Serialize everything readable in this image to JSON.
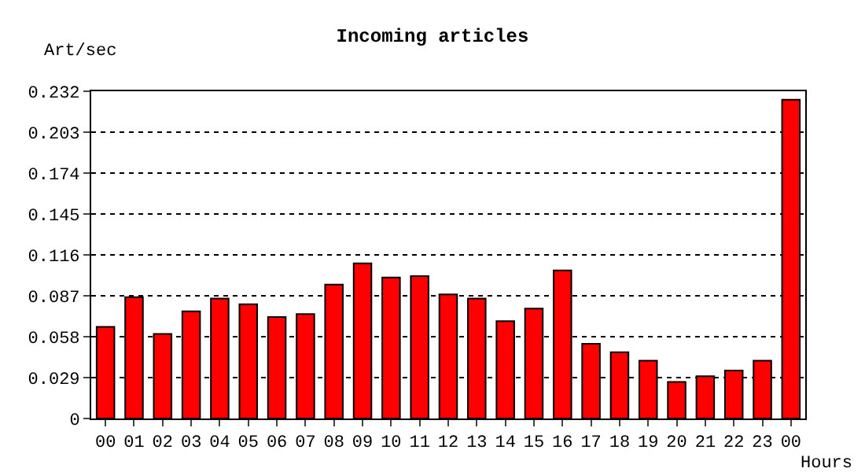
{
  "chart_data": {
    "type": "bar",
    "title": "Incoming articles",
    "ylabel": "Art/sec",
    "xlabel": "Hours",
    "categories": [
      "00",
      "01",
      "02",
      "03",
      "04",
      "05",
      "06",
      "07",
      "08",
      "09",
      "10",
      "11",
      "12",
      "13",
      "14",
      "15",
      "16",
      "17",
      "18",
      "19",
      "20",
      "21",
      "22",
      "23",
      "00"
    ],
    "values": [
      0.065,
      0.086,
      0.06,
      0.076,
      0.085,
      0.081,
      0.072,
      0.074,
      0.095,
      0.11,
      0.1,
      0.101,
      0.088,
      0.085,
      0.069,
      0.078,
      0.105,
      0.053,
      0.047,
      0.041,
      0.026,
      0.03,
      0.034,
      0.041,
      0.226
    ],
    "color": "#ff0000",
    "ylim": [
      0,
      0.232
    ],
    "yticks": [
      0,
      0.029,
      0.058,
      0.087,
      0.116,
      0.145,
      0.174,
      0.203,
      0.232
    ],
    "grid": "y"
  }
}
